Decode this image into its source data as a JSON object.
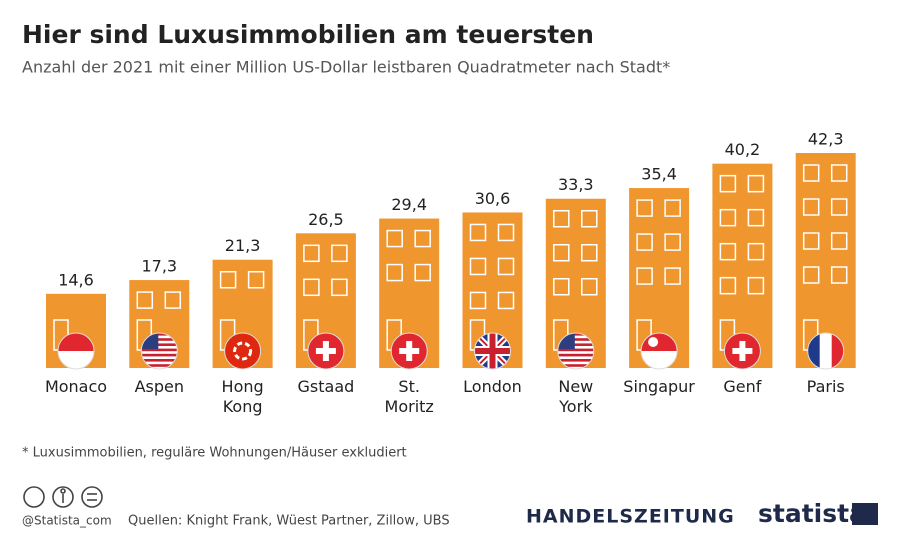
{
  "chart_data": {
    "type": "bar",
    "title": "Hier sind Luxusimmobilien am teuersten",
    "subtitle": "Anzahl der 2021 mit einer Million US-Dollar leistbaren Quadratmeter nach Stadt*",
    "categories": [
      "Monaco",
      "Aspen",
      "Hong Kong",
      "Gstaad",
      "St. Moritz",
      "London",
      "New York",
      "Singapur",
      "Genf",
      "Paris"
    ],
    "values": [
      14.6,
      17.3,
      21.3,
      26.5,
      29.4,
      30.6,
      33.3,
      35.4,
      40.2,
      42.3
    ],
    "value_labels": [
      "14,6",
      "17,3",
      "21,3",
      "26,5",
      "29,4",
      "30,6",
      "33,3",
      "35,4",
      "40,2",
      "42,3"
    ],
    "color": "#f0962e"
  },
  "footer": {
    "footnote": "* Luxusimmobilien, reguläre Wohnungen/Häuser exkludiert",
    "credit": "@Statista_com",
    "source": "Quellen: Knight Frank, Wüest Partner, Zillow, UBS",
    "brand": "HANDELSZEITUNG",
    "logo": "statista"
  }
}
